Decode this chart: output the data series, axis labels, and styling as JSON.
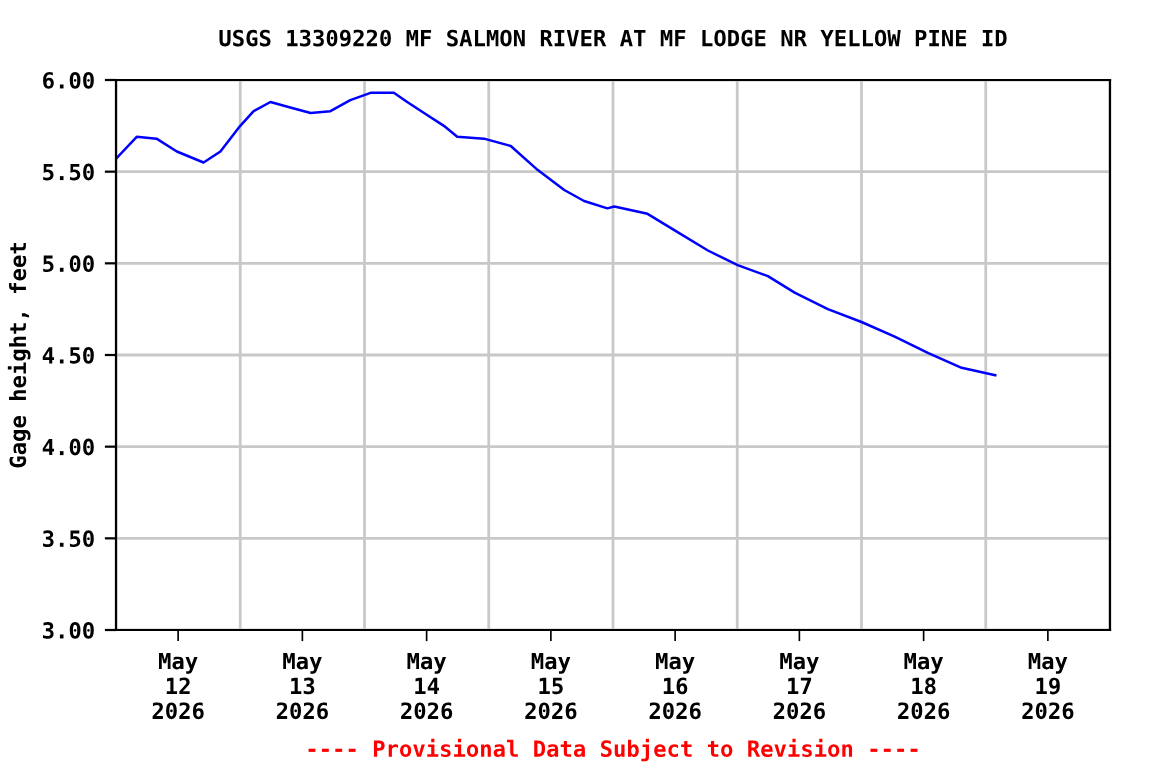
{
  "chart_data": {
    "type": "line",
    "title": "USGS 13309220 MF SALMON RIVER AT MF LODGE NR YELLOW PINE ID",
    "ylabel": "Gage height, feet",
    "annotations": [
      "---- Provisional Data Subject to Revision ----"
    ],
    "x": [
      "2026-05-12T00:00",
      "2026-05-12T04:00",
      "2026-05-12T07:50",
      "2026-05-12T11:45",
      "2026-05-12T16:55",
      "2026-05-12T20:10",
      "2026-05-13T00:00",
      "2026-05-13T02:35",
      "2026-05-13T05:50",
      "2026-05-13T09:40",
      "2026-05-13T13:35",
      "2026-05-13T17:25",
      "2026-05-13T21:15",
      "2026-05-14T01:10",
      "2026-05-14T05:40",
      "2026-05-14T08:15",
      "2026-05-14T11:30",
      "2026-05-14T15:20",
      "2026-05-14T17:55",
      "2026-05-14T23:05",
      "2026-05-15T04:15",
      "2026-05-15T09:25",
      "2026-05-15T14:35",
      "2026-05-15T18:25",
      "2026-05-15T22:55",
      "2026-05-16T00:15",
      "2026-05-16T06:40",
      "2026-05-16T11:55",
      "2026-05-16T18:20",
      "2026-05-17T00:05",
      "2026-05-17T05:55",
      "2026-05-17T11:05",
      "2026-05-17T17:30",
      "2026-05-18T00:00",
      "2026-05-18T06:25",
      "2026-05-18T12:55",
      "2026-05-18T19:20",
      "2026-05-19T01:50"
    ],
    "series": [
      {
        "color": "#0000ff",
        "values": [
          5.57,
          5.69,
          5.68,
          5.61,
          5.55,
          5.61,
          5.75,
          5.83,
          5.88,
          5.85,
          5.82,
          5.83,
          5.89,
          5.93,
          5.93,
          5.88,
          5.82,
          5.75,
          5.69,
          5.68,
          5.64,
          5.51,
          5.4,
          5.34,
          5.3,
          5.31,
          5.27,
          5.18,
          5.07,
          4.99,
          4.93,
          4.84,
          4.75,
          4.68,
          4.6,
          4.51,
          4.43,
          4.39
        ]
      }
    ],
    "xlim": [
      "2026-05-12T00:00",
      "2026-05-20T00:00"
    ],
    "xticks": [
      {
        "value": "2026-05-12T00:00",
        "label": null
      },
      {
        "value": "2026-05-12T12:00",
        "label": "May\n12\n2026"
      },
      {
        "value": "2026-05-13T00:00",
        "label": null
      },
      {
        "value": "2026-05-13T12:00",
        "label": "May\n13\n2026"
      },
      {
        "value": "2026-05-14T00:00",
        "label": null
      },
      {
        "value": "2026-05-14T12:00",
        "label": "May\n14\n2026"
      },
      {
        "value": "2026-05-15T00:00",
        "label": null
      },
      {
        "value": "2026-05-15T12:00",
        "label": "May\n15\n2026"
      },
      {
        "value": "2026-05-16T00:00",
        "label": null
      },
      {
        "value": "2026-05-16T12:00",
        "label": "May\n16\n2026"
      },
      {
        "value": "2026-05-17T00:00",
        "label": null
      },
      {
        "value": "2026-05-17T12:00",
        "label": "May\n17\n2026"
      },
      {
        "value": "2026-05-18T00:00",
        "label": null
      },
      {
        "value": "2026-05-18T12:00",
        "label": "May\n18\n2026"
      },
      {
        "value": "2026-05-19T00:00",
        "label": null
      },
      {
        "value": "2026-05-19T12:00",
        "label": "May\n19\n2026"
      },
      {
        "value": "2026-05-20T00:00",
        "label": null
      }
    ],
    "ylim": [
      3.0,
      6.0
    ],
    "yticks": [
      {
        "value": 3.0,
        "label": "3.00"
      },
      {
        "value": 3.5,
        "label": "3.50"
      },
      {
        "value": 4.0,
        "label": "4.00"
      },
      {
        "value": 4.5,
        "label": "4.50"
      },
      {
        "value": 5.0,
        "label": "5.00"
      },
      {
        "value": 5.5,
        "label": "5.50"
      },
      {
        "value": 6.0,
        "label": "6.00"
      }
    ],
    "grid": true,
    "legend": false,
    "marker": "none",
    "line_style": "solid"
  }
}
